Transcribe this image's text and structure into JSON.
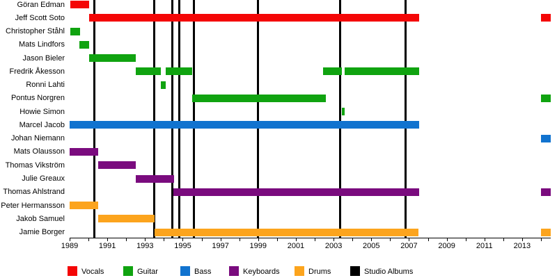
{
  "chart_data": {
    "type": "bar",
    "subtype": "horizontal-gantt-timeline",
    "title": "",
    "xlabel": "",
    "ylabel": "",
    "grid": false,
    "axis": {
      "year_min": 1989,
      "year_max": 2014.5,
      "tick_label_years": [
        1989,
        1991,
        1993,
        1995,
        1997,
        1999,
        2001,
        2003,
        2005,
        2007,
        2009,
        2011,
        2013
      ],
      "minor_tick_start": 1989,
      "minor_tick_end": 2014,
      "minor_tick_step": 1
    },
    "colors": {
      "vocals": "#f40606",
      "guitar": "#10a310",
      "bass": "#1173cf",
      "keyboards": "#7a0b7e",
      "drums": "#fca41d",
      "albums": "#000000"
    },
    "members": [
      {
        "name": "Göran Edman",
        "role": "vocals",
        "segments": [
          [
            1989.05,
            1990.05
          ]
        ]
      },
      {
        "name": "Jeff Scott Soto",
        "role": "vocals",
        "segments": [
          [
            1990.05,
            2007.55
          ],
          [
            2014.0,
            2014.5
          ]
        ]
      },
      {
        "name": "Christopher Ståhl",
        "role": "guitar",
        "segments": [
          [
            1989.05,
            1989.55
          ]
        ]
      },
      {
        "name": "Mats Lindfors",
        "role": "guitar",
        "segments": [
          [
            1989.5,
            1990.05
          ]
        ]
      },
      {
        "name": "Jason Bieler",
        "role": "guitar",
        "segments": [
          [
            1990.05,
            1992.5
          ]
        ]
      },
      {
        "name": "Fredrik Åkesson",
        "role": "guitar",
        "segments": [
          [
            1992.5,
            1993.85
          ],
          [
            1994.1,
            1995.5
          ],
          [
            2002.45,
            2003.45
          ],
          [
            2003.6,
            2007.55
          ]
        ]
      },
      {
        "name": "Ronni Lahti",
        "role": "guitar",
        "segments": [
          [
            1993.85,
            1994.1
          ]
        ]
      },
      {
        "name": "Pontus Norgren",
        "role": "guitar",
        "segments": [
          [
            1995.5,
            2002.6
          ],
          [
            2014.0,
            2014.5
          ]
        ]
      },
      {
        "name": "Howie Simon",
        "role": "guitar",
        "segments": [
          [
            2003.45,
            2003.6
          ]
        ]
      },
      {
        "name": "Marcel Jacob",
        "role": "bass",
        "segments": [
          [
            1989.0,
            2007.55
          ]
        ]
      },
      {
        "name": "Johan Niemann",
        "role": "bass",
        "segments": [
          [
            2014.0,
            2014.5
          ]
        ]
      },
      {
        "name": "Mats Olausson",
        "role": "keyboards",
        "segments": [
          [
            1989.0,
            1990.5
          ]
        ]
      },
      {
        "name": "Thomas Vikström",
        "role": "keyboards",
        "segments": [
          [
            1990.5,
            1992.5
          ]
        ]
      },
      {
        "name": "Julie Greaux",
        "role": "keyboards",
        "segments": [
          [
            1992.5,
            1994.55
          ]
        ]
      },
      {
        "name": "Thomas Ahlstrand",
        "role": "keyboards",
        "segments": [
          [
            1994.5,
            2007.55
          ],
          [
            2014.0,
            2014.5
          ]
        ]
      },
      {
        "name": "Peter Hermansson",
        "role": "drums",
        "segments": [
          [
            1989.0,
            1990.5
          ]
        ]
      },
      {
        "name": "Jakob Samuel",
        "role": "drums",
        "segments": [
          [
            1990.5,
            1993.5
          ]
        ]
      },
      {
        "name": "Jamie Borger",
        "role": "drums",
        "segments": [
          [
            1993.5,
            2007.5
          ],
          [
            2014.0,
            2014.5
          ]
        ]
      }
    ],
    "studio_album_years": [
      1990.3,
      1993.5,
      1994.45,
      1994.8,
      1995.6,
      1999.0,
      2003.35,
      2006.8
    ],
    "legend": [
      {
        "label": "Vocals",
        "color_key": "vocals"
      },
      {
        "label": "Guitar",
        "color_key": "guitar"
      },
      {
        "label": "Bass",
        "color_key": "bass"
      },
      {
        "label": "Keyboards",
        "color_key": "keyboards"
      },
      {
        "label": "Drums",
        "color_key": "drums"
      },
      {
        "label": "Studio Albums",
        "color_key": "albums"
      }
    ],
    "legend_position": "bottom"
  }
}
